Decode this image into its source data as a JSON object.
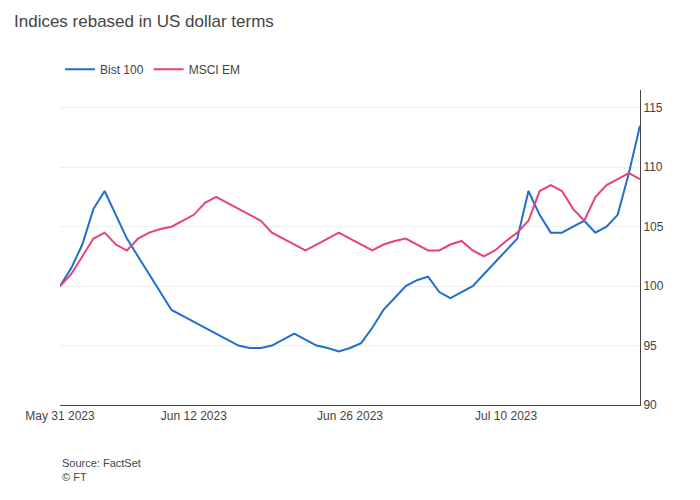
{
  "chart_data": {
    "type": "line",
    "title": "Indices rebased in US dollar terms",
    "annotations": [
      "Source: FactSet\n© FT"
    ],
    "x": [
      0,
      1,
      2,
      3,
      4,
      5,
      6,
      7,
      8,
      9,
      10,
      11,
      12,
      13,
      14,
      15,
      16,
      17,
      18,
      19,
      20,
      21,
      22,
      23,
      24,
      25,
      26,
      27,
      28,
      29,
      30,
      31,
      32,
      33,
      34,
      35,
      36,
      37,
      38,
      39,
      40,
      41,
      42,
      43,
      44,
      45,
      46,
      47,
      48,
      49,
      50,
      51,
      52
    ],
    "series": [
      {
        "name": "Bist 100",
        "color": "#1f6fce",
        "values": [
          100.0,
          101.5,
          103.5,
          106.5,
          108.0,
          106.0,
          104.0,
          102.5,
          101.0,
          99.5,
          98.0,
          97.5,
          97.0,
          96.5,
          96.0,
          95.5,
          95.0,
          94.8,
          94.8,
          95.0,
          95.5,
          96.0,
          95.5,
          95.0,
          94.8,
          94.5,
          94.8,
          95.2,
          96.5,
          98.0,
          99.0,
          100.0,
          100.5,
          100.8,
          99.5,
          99.0,
          99.5,
          100.0,
          101.0,
          102.0,
          103.0,
          104.0,
          108.0,
          106.0,
          104.5,
          104.5,
          105.0,
          105.5,
          104.5,
          105.0,
          106.0,
          109.5,
          113.5
        ]
      },
      {
        "name": "MSCI EM",
        "color": "#e8427a",
        "values": [
          100.0,
          101.0,
          102.5,
          104.0,
          104.5,
          103.5,
          103.0,
          104.0,
          104.5,
          104.8,
          105.0,
          105.5,
          106.0,
          107.0,
          107.5,
          107.0,
          106.5,
          106.0,
          105.5,
          104.5,
          104.0,
          103.5,
          103.0,
          103.5,
          104.0,
          104.5,
          104.0,
          103.5,
          103.0,
          103.5,
          103.8,
          104.0,
          103.5,
          103.0,
          103.0,
          103.5,
          103.8,
          103.0,
          102.5,
          103.0,
          103.8,
          104.5,
          105.5,
          108.0,
          108.5,
          108.0,
          106.5,
          105.5,
          107.5,
          108.5,
          109.0,
          109.5,
          109.0
        ]
      }
    ],
    "xlim": [
      0,
      52
    ],
    "xticks": [
      {
        "value": 0,
        "label": "May 31 2023"
      },
      {
        "value": 12,
        "label": "Jun 12 2023"
      },
      {
        "value": 26,
        "label": "Jun 26 2023"
      },
      {
        "value": 40,
        "label": "Jul 10 2023"
      }
    ],
    "ylim": [
      90,
      116.5
    ],
    "yticks": [
      90,
      95,
      100,
      105,
      110,
      115
    ],
    "grid": "y",
    "legend": "top left"
  }
}
